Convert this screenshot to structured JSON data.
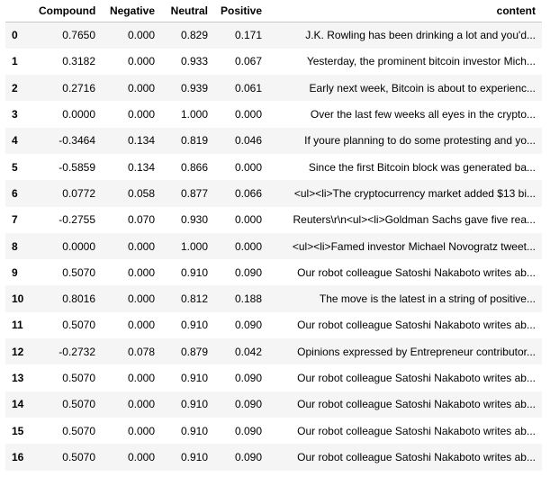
{
  "table": {
    "columns": [
      "",
      "Compound",
      "Negative",
      "Neutral",
      "Positive",
      "content"
    ],
    "rows": [
      [
        "0",
        "0.7650",
        "0.000",
        "0.829",
        "0.171",
        "J.K. Rowling has been drinking a lot and you'd..."
      ],
      [
        "1",
        "0.3182",
        "0.000",
        "0.933",
        "0.067",
        "Yesterday, the prominent bitcoin investor Mich..."
      ],
      [
        "2",
        "0.2716",
        "0.000",
        "0.939",
        "0.061",
        "Early next week, Bitcoin is about to experienc..."
      ],
      [
        "3",
        "0.0000",
        "0.000",
        "1.000",
        "0.000",
        "Over the last few weeks all eyes in the crypto..."
      ],
      [
        "4",
        "-0.3464",
        "0.134",
        "0.819",
        "0.046",
        "If youre planning to do some protesting and yo..."
      ],
      [
        "5",
        "-0.5859",
        "0.134",
        "0.866",
        "0.000",
        "Since the first Bitcoin block was generated ba..."
      ],
      [
        "6",
        "0.0772",
        "0.058",
        "0.877",
        "0.066",
        "<ul><li>The cryptocurrency market added $13 bi..."
      ],
      [
        "7",
        "-0.2755",
        "0.070",
        "0.930",
        "0.000",
        "Reuters\\r\\n<ul><li>Goldman Sachs gave five rea..."
      ],
      [
        "8",
        "0.0000",
        "0.000",
        "1.000",
        "0.000",
        "<ul><li>Famed investor Michael Novogratz tweet..."
      ],
      [
        "9",
        "0.5070",
        "0.000",
        "0.910",
        "0.090",
        "Our robot colleague Satoshi Nakaboto writes ab..."
      ],
      [
        "10",
        "0.8016",
        "0.000",
        "0.812",
        "0.188",
        "The move is the latest in a string of positive..."
      ],
      [
        "11",
        "0.5070",
        "0.000",
        "0.910",
        "0.090",
        "Our robot colleague Satoshi Nakaboto writes ab..."
      ],
      [
        "12",
        "-0.2732",
        "0.078",
        "0.879",
        "0.042",
        "Opinions expressed by Entrepreneur contributor..."
      ],
      [
        "13",
        "0.5070",
        "0.000",
        "0.910",
        "0.090",
        "Our robot colleague Satoshi Nakaboto writes ab..."
      ],
      [
        "14",
        "0.5070",
        "0.000",
        "0.910",
        "0.090",
        "Our robot colleague Satoshi Nakaboto writes ab..."
      ],
      [
        "15",
        "0.5070",
        "0.000",
        "0.910",
        "0.090",
        "Our robot colleague Satoshi Nakaboto writes ab..."
      ],
      [
        "16",
        "0.5070",
        "0.000",
        "0.910",
        "0.090",
        "Our robot colleague Satoshi Nakaboto writes ab..."
      ]
    ]
  }
}
